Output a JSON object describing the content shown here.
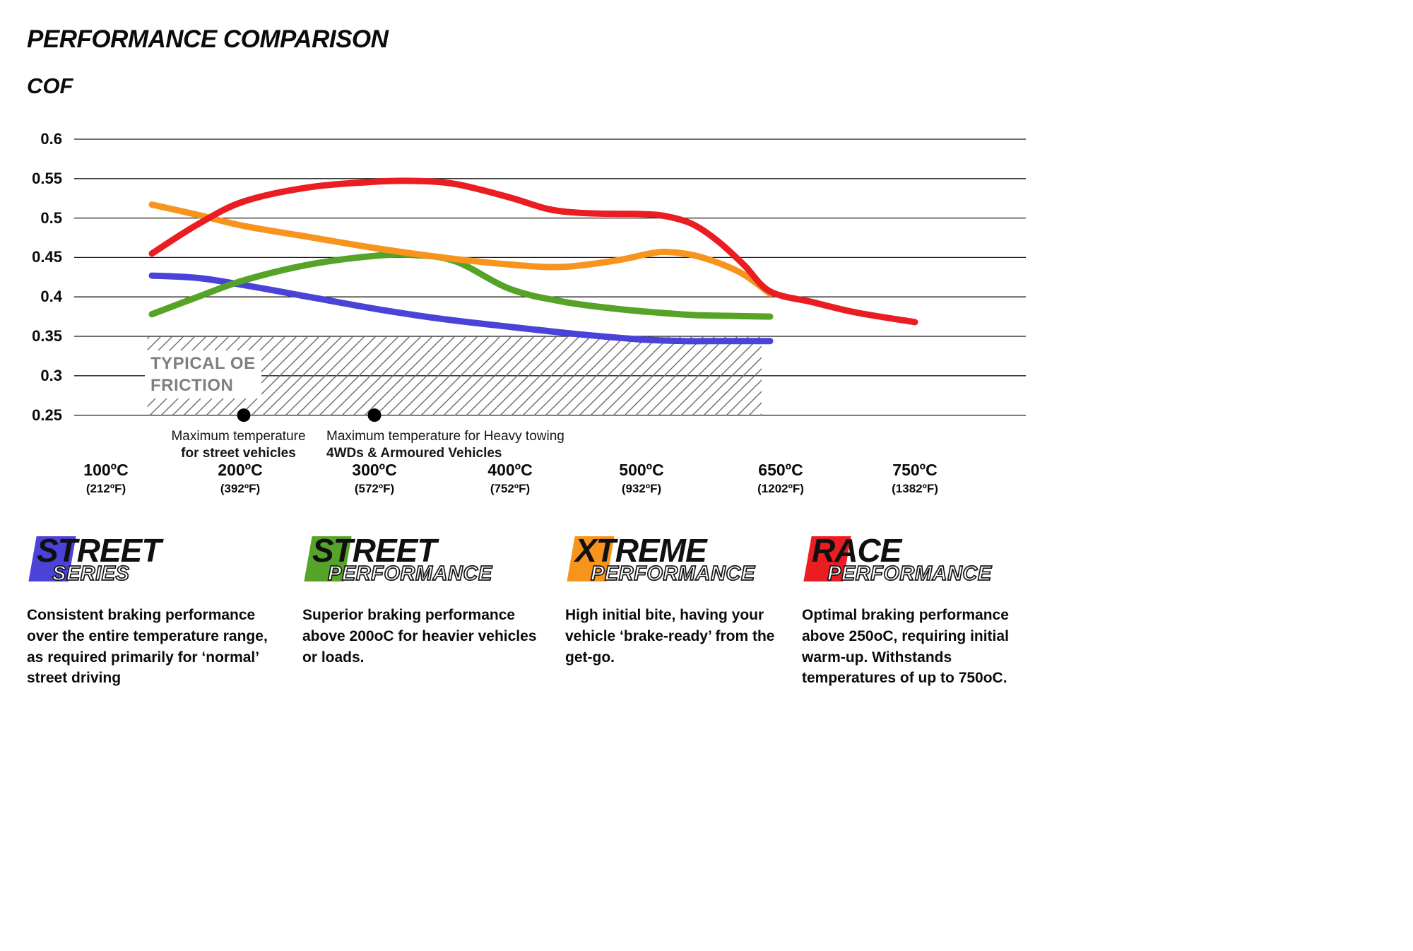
{
  "header": {
    "title": "PERFORMANCE COMPARISON"
  },
  "chart_data": {
    "type": "line",
    "title": "PERFORMANCE COMPARISON",
    "ylabel": "COF",
    "xlabel": "",
    "ylim": [
      0.25,
      0.6
    ],
    "grid": "horizontal",
    "yticks": [
      "0.6",
      "0.55",
      "0.5",
      "0.45",
      "0.4",
      "0.35",
      "0.3",
      "0.25"
    ],
    "x_axis": [
      {
        "label": "100ºC",
        "sub": "(212ºF)"
      },
      {
        "label": "200ºC",
        "sub": "(392ºF)"
      },
      {
        "label": "300ºC",
        "sub": "(572ºF)"
      },
      {
        "label": "400ºC",
        "sub": "(752ºF)"
      },
      {
        "label": "500ºC",
        "sub": "(932ºF)"
      },
      {
        "label": "650ºC",
        "sub": "(1202ºF)"
      },
      {
        "label": "750ºC",
        "sub": "(1382ºF)"
      }
    ],
    "series": [
      {
        "name": "Street Series",
        "color": "#4b43d8",
        "points": [
          [
            100,
            0.427
          ],
          [
            150,
            0.424
          ],
          [
            200,
            0.415
          ],
          [
            250,
            0.4
          ],
          [
            300,
            0.385
          ],
          [
            350,
            0.372
          ],
          [
            400,
            0.362
          ],
          [
            450,
            0.353
          ],
          [
            500,
            0.346
          ],
          [
            550,
            0.344
          ],
          [
            600,
            0.344
          ],
          [
            650,
            0.344
          ]
        ]
      },
      {
        "name": "Street Performance",
        "color": "#55a327",
        "points": [
          [
            100,
            0.378
          ],
          [
            150,
            0.4
          ],
          [
            200,
            0.421
          ],
          [
            250,
            0.441
          ],
          [
            300,
            0.452
          ],
          [
            330,
            0.453
          ],
          [
            360,
            0.445
          ],
          [
            400,
            0.41
          ],
          [
            440,
            0.394
          ],
          [
            480,
            0.385
          ],
          [
            520,
            0.38
          ],
          [
            560,
            0.377
          ],
          [
            600,
            0.376
          ],
          [
            650,
            0.375
          ]
        ]
      },
      {
        "name": "Xtreme Performance",
        "color": "#f7941e",
        "points": [
          [
            100,
            0.517
          ],
          [
            150,
            0.504
          ],
          [
            200,
            0.49
          ],
          [
            250,
            0.476
          ],
          [
            300,
            0.462
          ],
          [
            350,
            0.45
          ],
          [
            400,
            0.441
          ],
          [
            440,
            0.438
          ],
          [
            480,
            0.446
          ],
          [
            510,
            0.455
          ],
          [
            530,
            0.457
          ],
          [
            560,
            0.453
          ],
          [
            590,
            0.443
          ],
          [
            620,
            0.428
          ],
          [
            650,
            0.404
          ]
        ]
      },
      {
        "name": "Race Performance",
        "color": "#ea1d22",
        "points": [
          [
            100,
            0.455
          ],
          [
            150,
            0.492
          ],
          [
            200,
            0.521
          ],
          [
            250,
            0.539
          ],
          [
            300,
            0.546
          ],
          [
            330,
            0.547
          ],
          [
            360,
            0.543
          ],
          [
            400,
            0.526
          ],
          [
            430,
            0.511
          ],
          [
            460,
            0.506
          ],
          [
            500,
            0.505
          ],
          [
            530,
            0.502
          ],
          [
            560,
            0.492
          ],
          [
            590,
            0.47
          ],
          [
            620,
            0.44
          ],
          [
            650,
            0.407
          ],
          [
            680,
            0.393
          ],
          [
            710,
            0.38
          ],
          [
            750,
            0.368
          ]
        ]
      }
    ],
    "oe_band": {
      "label_line1": "TYPICAL OE",
      "label_line2": "FRICTION",
      "cof_range": [
        0.25,
        0.35
      ],
      "temp_range": [
        95,
        640
      ]
    },
    "annotations": [
      {
        "temp": 200,
        "cof": 0.25,
        "line1": "Maximum temperature",
        "line2": "for street vehicles"
      },
      {
        "temp": 300,
        "cof": 0.25,
        "line1": "Maximum temperature for Heavy towing",
        "line2": "4WDs & Armoured Vehicles"
      }
    ]
  },
  "legend": [
    {
      "name": "Street Series",
      "color": "#4b43d8",
      "word1": "STREET",
      "word2": "SERIES",
      "description": "Consistent braking performance over the entire temperature range, as required primarily for ‘normal’ street driving"
    },
    {
      "name": "Street Performance",
      "color": "#55a327",
      "word1": "STREET",
      "word2": "PERFORMANCE",
      "description": "Superior braking performance above 200oC for heavier vehicles or loads."
    },
    {
      "name": "Xtreme Performance",
      "color": "#f7941e",
      "word1": "XTREME",
      "word2": "PERFORMANCE",
      "description": "High initial bite, having your vehicle ‘brake-ready’ from the get-go."
    },
    {
      "name": "Race Performance",
      "color": "#ea1d22",
      "word1": "RACE",
      "word2": "PERFORMANCE",
      "description": "Optimal braking performance above 250oC, requiring initial warm-up. Withstands temperatures of up to 750oC."
    }
  ]
}
